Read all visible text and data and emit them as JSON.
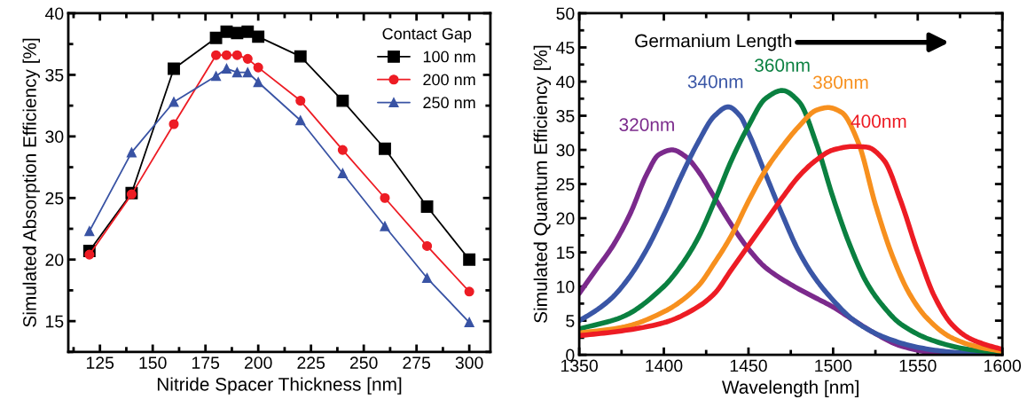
{
  "chart_data": [
    {
      "type": "line",
      "xlabel": "Nitride Spacer Thickness [nm]",
      "ylabel": "Simulated Absorption Efficiency [%]",
      "legend_title": "Contact Gap",
      "legend": "top right",
      "grid": false,
      "xlim": [
        110,
        310
      ],
      "xticks": [
        125,
        150,
        175,
        200,
        225,
        250,
        275,
        300
      ],
      "ylim": [
        12.5,
        40
      ],
      "yticks": [
        15,
        20,
        25,
        30,
        35,
        40
      ],
      "x": [
        120,
        140,
        160,
        180,
        185,
        190,
        195,
        200,
        220,
        240,
        260,
        280,
        300
      ],
      "series": [
        {
          "name": "100 nm",
          "color": "#000000",
          "marker": "square",
          "values": [
            20.7,
            25.4,
            35.5,
            38.0,
            38.5,
            38.4,
            38.5,
            38.1,
            36.5,
            32.9,
            29.0,
            24.3,
            20.0
          ]
        },
        {
          "name": "200 nm",
          "color": "#ed1c24",
          "marker": "circle",
          "values": [
            20.4,
            25.3,
            31.0,
            36.6,
            36.6,
            36.6,
            36.3,
            35.6,
            32.9,
            28.9,
            25.0,
            21.1,
            17.4
          ]
        },
        {
          "name": "250 nm",
          "color": "#3953a4",
          "marker": "triangle",
          "values": [
            22.3,
            28.7,
            32.8,
            34.9,
            35.5,
            35.2,
            35.2,
            34.4,
            31.3,
            27.0,
            22.7,
            18.5,
            14.9
          ]
        }
      ]
    },
    {
      "type": "line",
      "xlabel": "Wavelength [nm]",
      "ylabel": "Simulated Quantum Efficiency [%]",
      "legend": false,
      "grid": false,
      "marker": "none",
      "annotations": [
        "Germanium Length"
      ],
      "xlim": [
        1350,
        1600
      ],
      "xticks": [
        1350,
        1400,
        1450,
        1500,
        1550,
        1600
      ],
      "ylim": [
        0,
        50
      ],
      "yticks": [
        0,
        5,
        10,
        15,
        20,
        25,
        30,
        35,
        40,
        45,
        50
      ],
      "series": [
        {
          "name": "320nm",
          "color": "#7b2a8c",
          "x": [
            1350,
            1360,
            1370,
            1380,
            1390,
            1397,
            1405,
            1413,
            1420,
            1430,
            1440,
            1450,
            1460,
            1475,
            1490,
            1500,
            1510,
            1525,
            1540,
            1560,
            1580,
            1600
          ],
          "values": [
            9,
            12.5,
            16,
            20.6,
            26.5,
            29.3,
            30,
            29,
            27,
            23,
            19,
            15.5,
            12.8,
            10.3,
            8.3,
            7,
            5.4,
            3.1,
            1.3,
            0.3,
            0.1,
            0
          ]
        },
        {
          "name": "340nm",
          "color": "#3a56a6",
          "x": [
            1350,
            1360,
            1370,
            1380,
            1390,
            1400,
            1410,
            1420,
            1430,
            1438,
            1445,
            1450,
            1460,
            1470,
            1480,
            1490,
            1500,
            1510,
            1520,
            1530,
            1550,
            1570,
            1600
          ],
          "values": [
            5,
            6.5,
            8.5,
            11.5,
            15.5,
            20.5,
            26,
            31,
            35,
            36.3,
            35,
            32.5,
            26.5,
            20.5,
            15,
            11,
            8,
            5.5,
            3.8,
            2.6,
            1.1,
            0.4,
            0
          ]
        },
        {
          "name": "360nm",
          "color": "#0a8040",
          "x": [
            1350,
            1375,
            1400,
            1410,
            1420,
            1430,
            1440,
            1450,
            1460,
            1470,
            1480,
            1490,
            1500,
            1510,
            1520,
            1530,
            1540,
            1560,
            1580,
            1600
          ],
          "values": [
            3.8,
            5.5,
            10,
            13,
            17,
            22.5,
            28.5,
            33.5,
            37.5,
            38.7,
            37,
            31,
            23,
            16,
            10.5,
            7,
            4.5,
            2,
            0.8,
            0.3
          ]
        },
        {
          "name": "380nm",
          "color": "#f7901e",
          "x": [
            1350,
            1375,
            1400,
            1420,
            1430,
            1440,
            1450,
            1460,
            1470,
            1480,
            1490,
            1497,
            1505,
            1515,
            1525,
            1535,
            1545,
            1555,
            1570,
            1585,
            1600
          ],
          "values": [
            3.2,
            4,
            6.3,
            10,
            13.5,
            17.5,
            22.5,
            27,
            30.5,
            33.5,
            35.8,
            36.2,
            35.5,
            31,
            22,
            14.5,
            9,
            5.5,
            2.5,
            1.2,
            0.5
          ]
        },
        {
          "name": "400nm",
          "color": "#ed1c24",
          "x": [
            1350,
            1375,
            1400,
            1420,
            1430,
            1440,
            1450,
            1460,
            1470,
            1480,
            1490,
            1500,
            1512,
            1520,
            1530,
            1540,
            1550,
            1560,
            1570,
            1580,
            1590,
            1600
          ],
          "values": [
            2.8,
            3.5,
            4.7,
            7,
            9,
            12.5,
            16,
            19.5,
            23,
            26.2,
            28.5,
            30,
            30.5,
            30.4,
            28.5,
            22.5,
            15,
            8.5,
            4.5,
            2.5,
            1.5,
            0.8
          ]
        }
      ]
    }
  ]
}
